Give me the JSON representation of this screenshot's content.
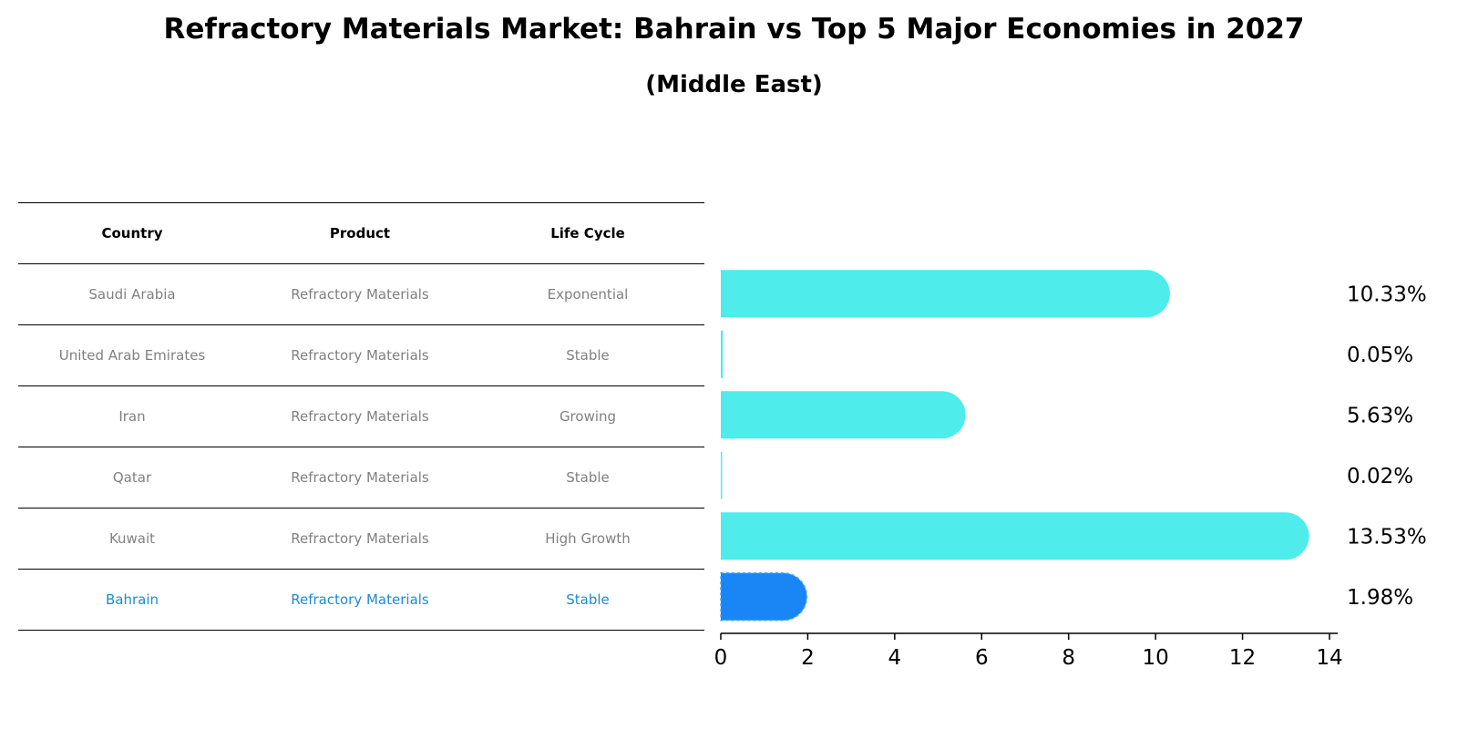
{
  "title": "Refractory Materials Market: Bahrain vs Top 5 Major Economies in 2027",
  "subtitle": "(Middle East)",
  "table": {
    "headers": [
      "Country",
      "Product",
      "Life Cycle"
    ],
    "rows": [
      [
        "Saudi Arabia",
        "Refractory Materials",
        "Exponential"
      ],
      [
        "United Arab Emirates",
        "Refractory Materials",
        "Stable"
      ],
      [
        "Iran",
        "Refractory Materials",
        "Growing"
      ],
      [
        "Qatar",
        "Refractory Materials",
        "Stable"
      ],
      [
        "Kuwait",
        "Refractory Materials",
        "High Growth"
      ],
      [
        "Bahrain",
        "Refractory Materials",
        "Stable"
      ]
    ],
    "highlight_row": 5
  },
  "colors": {
    "bar": "#4eecea",
    "highlight_bar": "#1a86f5",
    "highlight_text": "#1a8bd6",
    "muted_text": "#808080"
  },
  "chart_data": {
    "type": "bar",
    "orientation": "horizontal",
    "categories": [
      "Saudi Arabia",
      "United Arab Emirates",
      "Iran",
      "Qatar",
      "Kuwait",
      "Bahrain"
    ],
    "values": [
      10.33,
      0.05,
      5.63,
      0.02,
      13.53,
      1.98
    ],
    "value_labels": [
      "10.33%",
      "0.05%",
      "5.63%",
      "0.02%",
      "13.53%",
      "1.98%"
    ],
    "xlim": [
      0,
      14
    ],
    "xticks": [
      0,
      2,
      4,
      6,
      8,
      10,
      12,
      14
    ],
    "highlight_index": 5,
    "xlabel": "",
    "ylabel": ""
  }
}
